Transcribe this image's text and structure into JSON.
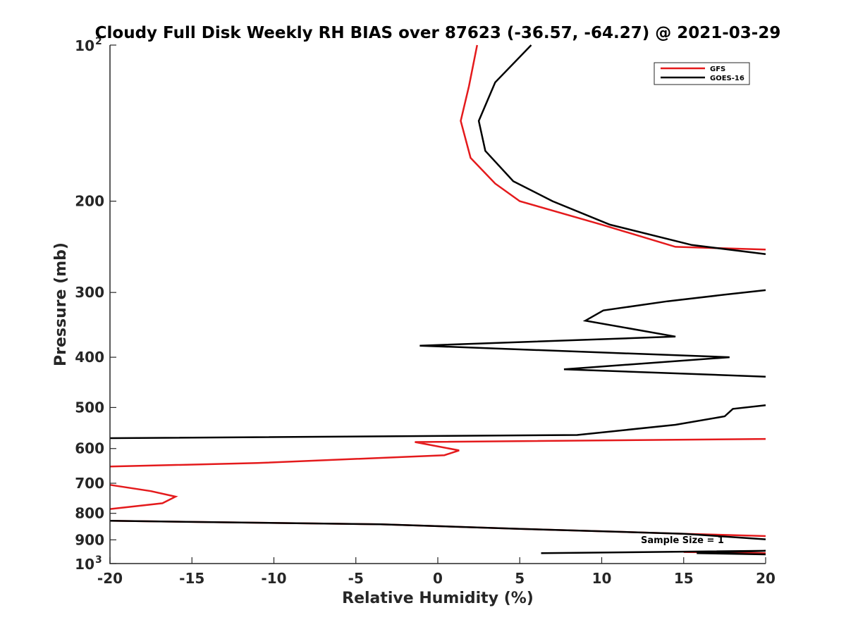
{
  "chart_data": {
    "type": "line",
    "title": "Cloudy Full Disk Weekly RH BIAS over 87623 (-36.57, -64.27) @ 2021-03-29",
    "xlabel": "Relative Humidity (%)",
    "ylabel": "Pressure (mb)",
    "xlim": [
      -20,
      20
    ],
    "ylim": [
      100,
      1000
    ],
    "y_scale": "log",
    "y_reversed": true,
    "grid": false,
    "legend_position": "top-right",
    "x_ticks": [
      "-20",
      "-15",
      "-10",
      "-5",
      "0",
      "5",
      "10",
      "15",
      "20"
    ],
    "y_ticks": [
      {
        "value": 100,
        "base": "10",
        "exp": "2"
      },
      {
        "value": 200,
        "label": "200"
      },
      {
        "value": 300,
        "label": "300"
      },
      {
        "value": 400,
        "label": "400"
      },
      {
        "value": 500,
        "label": "500"
      },
      {
        "value": 600,
        "label": "600"
      },
      {
        "value": 700,
        "label": "700"
      },
      {
        "value": 800,
        "label": "800"
      },
      {
        "value": 900,
        "label": "900"
      },
      {
        "value": 1000,
        "base": "10",
        "exp": "3"
      }
    ],
    "series": [
      {
        "name": "GFS",
        "color": "#e41a1c",
        "segments": [
          [
            [
              2.4,
              100
            ],
            [
              1.9,
              120
            ],
            [
              1.4,
              140
            ],
            [
              2.0,
              165
            ],
            [
              3.5,
              185
            ],
            [
              5.0,
              200
            ],
            [
              10.0,
              222
            ],
            [
              14.5,
              245
            ],
            [
              20.0,
              248
            ]
          ],
          [
            [
              20.0,
              575
            ],
            [
              -1.4,
              583
            ],
            [
              1.3,
              605
            ],
            [
              0.4,
              618
            ],
            [
              -11.0,
              640
            ],
            [
              -20.0,
              650
            ]
          ],
          [
            [
              -20.0,
              705
            ],
            [
              -17.5,
              725
            ],
            [
              -16.0,
              743
            ],
            [
              -16.8,
              765
            ],
            [
              -20.0,
              785
            ]
          ],
          [
            [
              -20.0,
              827
            ],
            [
              -3.5,
              840
            ],
            [
              5.0,
              857
            ],
            [
              15.0,
              876
            ],
            [
              20.0,
              885
            ]
          ],
          [
            [
              15.0,
              950
            ],
            [
              20.0,
              955
            ]
          ]
        ]
      },
      {
        "name": "GOES-16",
        "color": "#000000",
        "segments": [
          [
            [
              5.7,
              100
            ],
            [
              3.5,
              118
            ],
            [
              2.5,
              140
            ],
            [
              2.9,
              160
            ],
            [
              4.6,
              183
            ],
            [
              7.0,
              200
            ],
            [
              10.5,
              222
            ],
            [
              15.5,
              243
            ],
            [
              20.0,
              253
            ]
          ],
          [
            [
              20.0,
              297
            ],
            [
              17.5,
              303
            ],
            [
              14.0,
              312
            ],
            [
              10.1,
              325
            ],
            [
              9.0,
              340
            ],
            [
              14.5,
              365
            ],
            [
              -1.1,
              380
            ],
            [
              17.8,
              400
            ],
            [
              7.7,
              422
            ],
            [
              20.0,
              436
            ]
          ],
          [
            [
              20.0,
              495
            ],
            [
              18.0,
              503
            ],
            [
              17.5,
              520
            ],
            [
              14.5,
              540
            ],
            [
              8.5,
              565
            ],
            [
              -20.0,
              573
            ]
          ],
          [
            [
              -20.0,
              827
            ],
            [
              -3.5,
              840
            ],
            [
              5.0,
              857
            ],
            [
              15.0,
              876
            ],
            [
              20.0,
              898
            ]
          ],
          [
            [
              6.3,
              955
            ],
            [
              20.0,
              945
            ],
            [
              15.8,
              955
            ],
            [
              20.0,
              960
            ]
          ]
        ]
      }
    ],
    "annotation": "Sample Size = 1"
  }
}
